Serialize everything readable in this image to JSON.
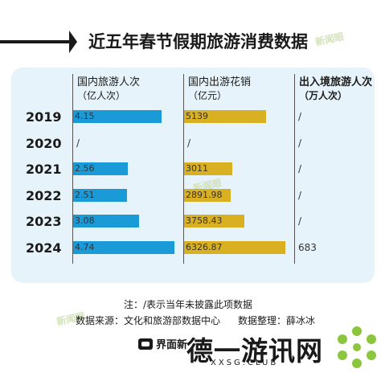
{
  "title": "近五年春节假期旅游消费数据",
  "watermark_stamp": "新闻眼",
  "columns": [
    {
      "name": "国内旅游人次",
      "unit": "（亿人次）"
    },
    {
      "name": "国内出游花销",
      "unit": "（亿元）"
    },
    {
      "name": "出入境旅游人次",
      "unit": "（万人次）"
    }
  ],
  "chart_data": {
    "type": "table",
    "categories": [
      "2019",
      "2020",
      "2021",
      "2022",
      "2023",
      "2024"
    ],
    "series": [
      {
        "name": "国内旅游人次",
        "color": "#1a9ad6",
        "labels": [
          "4.15",
          "/",
          "2.56",
          "2.51",
          "3.08",
          "4.74"
        ],
        "values": [
          4.15,
          null,
          2.56,
          2.51,
          3.08,
          4.74
        ]
      },
      {
        "name": "国内出游花销",
        "color": "#d9b021",
        "labels": [
          "5139",
          "/",
          "3011",
          "2891.98",
          "3758.43",
          "6326.87"
        ],
        "values": [
          5139,
          null,
          3011,
          2891.98,
          3758.43,
          6326.87
        ]
      },
      {
        "name": "出入境旅游人次",
        "labels": [
          "/",
          "/",
          "/",
          "/",
          "/",
          "683"
        ],
        "values": [
          null,
          null,
          null,
          null,
          null,
          683
        ]
      }
    ]
  },
  "footnote": "注：/表示当年未披露此项数据",
  "source": "数据来源：文化和旅游部数据中心",
  "editor": "数据整理：薛冰冰",
  "brand": "界面新",
  "site_watermark": "德一游讯网",
  "site_url": "XXSG.CLUB"
}
